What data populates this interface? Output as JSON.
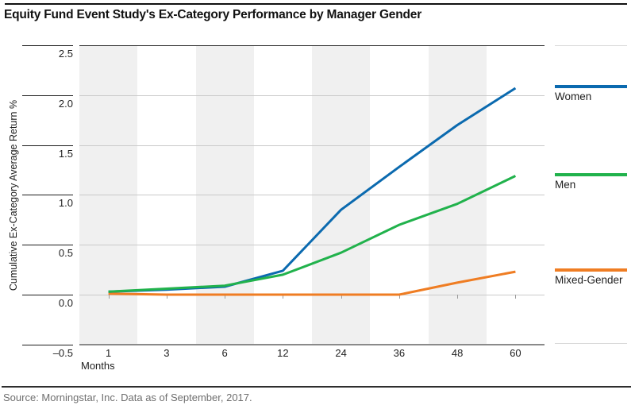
{
  "page": {
    "title": "Equity Fund Event Study's Ex-Category Performance by Manager Gender",
    "source": "Source: Morningstar, Inc. Data as of September, 2017."
  },
  "chart_data": {
    "type": "line",
    "title": "Equity Fund Event Study's Ex-Category Performance by Manager Gender",
    "xlabel": "Months",
    "ylabel": "Cumulative Ex-Category Average Return %",
    "x_months": [
      1,
      3,
      6,
      12,
      24,
      36,
      48,
      60
    ],
    "x_tick_labels": [
      "1",
      "3",
      "6",
      "12",
      "24",
      "36",
      "48",
      "60"
    ],
    "y_ticks": [
      2.5,
      2.0,
      1.5,
      1.0,
      0.5,
      0.0,
      -0.5
    ],
    "y_tick_labels": [
      "2.5",
      "2.0",
      "1.5",
      "1.0",
      "0.5",
      "0.0",
      "–0.5"
    ],
    "ylim": [
      -0.5,
      2.5
    ],
    "grid": "horizontal light gridlines; alternating vertical gray bands centered on months 1, 6, 24, 48; small ticks below the zero line at each month",
    "legend_position": "right column, each entry vertically aligned with its series end value",
    "series": [
      {
        "name": "Women",
        "color": "#0b6aaf",
        "values": [
          0.03,
          0.05,
          0.08,
          0.24,
          0.85,
          1.28,
          1.7,
          2.07
        ]
      },
      {
        "name": "Men",
        "color": "#21b24c",
        "values": [
          0.03,
          0.06,
          0.09,
          0.2,
          0.42,
          0.7,
          0.91,
          1.19
        ]
      },
      {
        "name": "Mixed-Gender",
        "color": "#ef7d23",
        "values": [
          0.01,
          0.0,
          0.0,
          0.0,
          0.0,
          0.0,
          0.12,
          0.23
        ]
      }
    ],
    "style": {
      "band_color": "#f0f0f0",
      "gridline_color": "#cacaca",
      "top_rule_color": "#2e2e2e",
      "bottom_axis_color": "#8a8a8a",
      "tick_rule_color": "#1e1e1e",
      "text_color": "#1e1e1e",
      "source_color": "#6f6f6f"
    }
  }
}
